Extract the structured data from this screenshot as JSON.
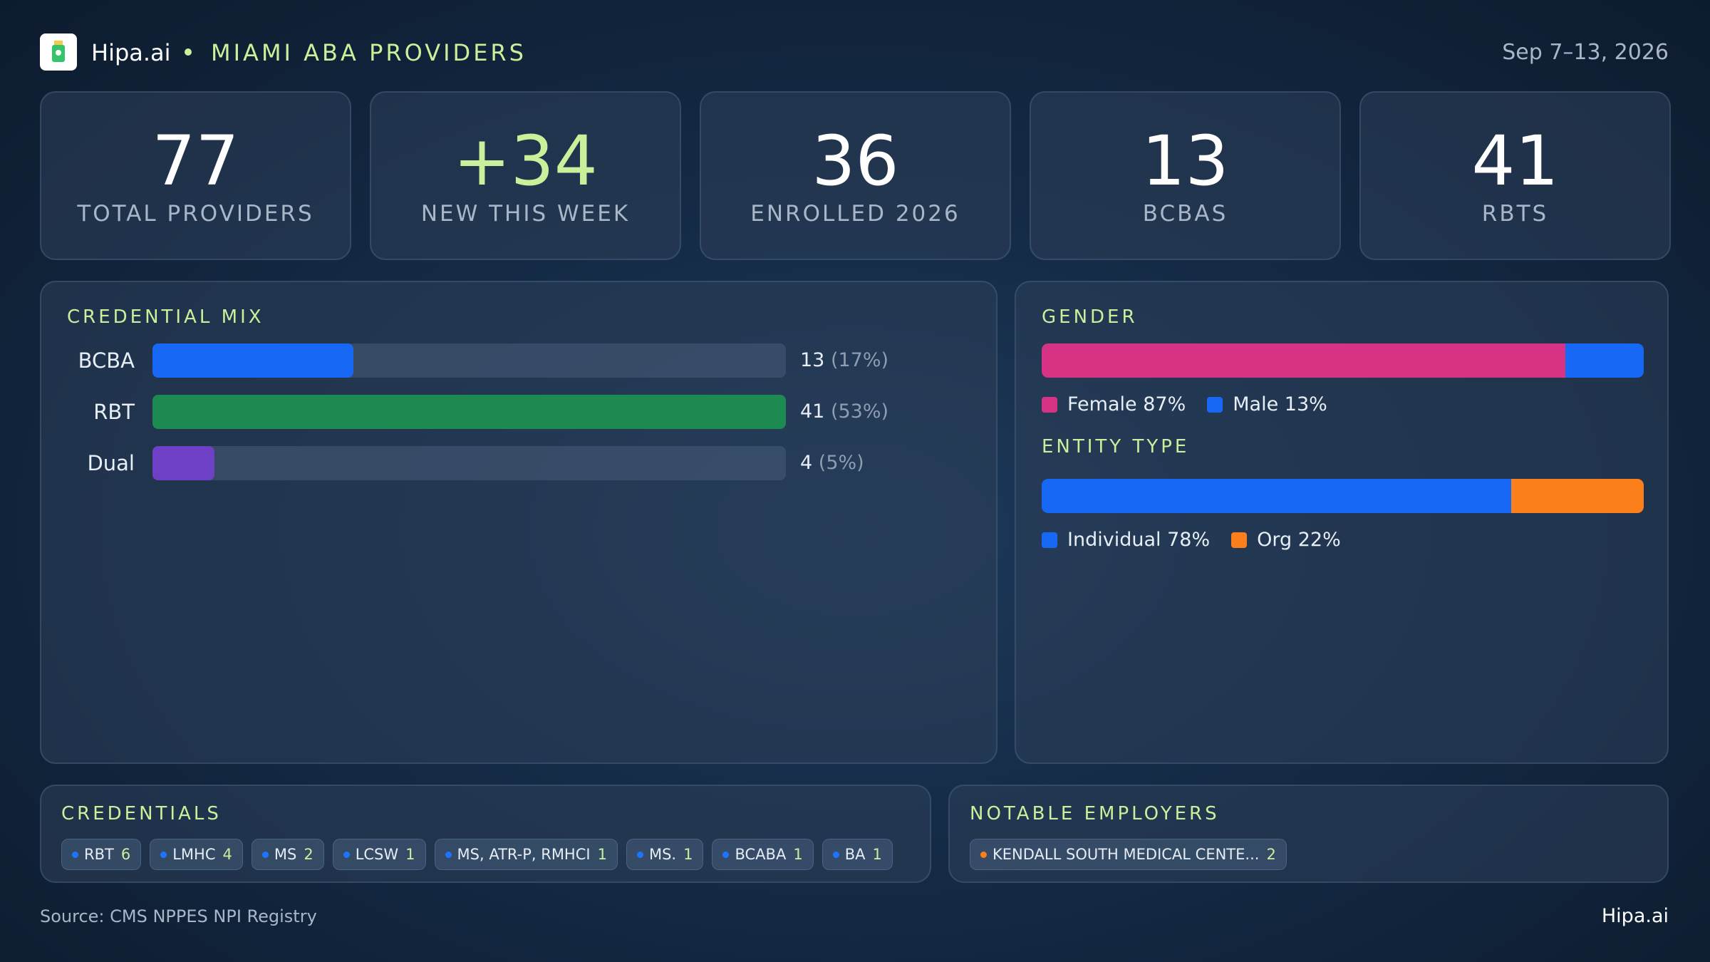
{
  "header": {
    "brand": "Hipa.ai",
    "title": "MIAMI ABA PROVIDERS",
    "date": "Sep 7–13, 2026"
  },
  "kpis": [
    {
      "value": "77",
      "label": "TOTAL PROVIDERS"
    },
    {
      "value": "+34",
      "label": "NEW THIS WEEK"
    },
    {
      "value": "36",
      "label": "ENROLLED 2026"
    },
    {
      "value": "13",
      "label": "BCBAS"
    },
    {
      "value": "41",
      "label": "RBTS"
    }
  ],
  "credential_mix": {
    "type": "bar",
    "title": "CREDENTIAL MIX",
    "categories": [
      "BCBA",
      "RBT",
      "Dual"
    ],
    "values": [
      13,
      41,
      4
    ],
    "share_labels": [
      "(17%)",
      "(53%)",
      "(5%)"
    ],
    "colors": [
      "#1769f5",
      "#1d8a52",
      "#6d40c6"
    ],
    "xlim": [
      0,
      41
    ]
  },
  "gender": {
    "type": "stacked-bar",
    "title": "GENDER",
    "xlim": [
      0,
      100
    ],
    "series": [
      {
        "name": "Female",
        "value": 87,
        "value_label": "87%",
        "color": "#d63384"
      },
      {
        "name": "Male",
        "value": 13,
        "value_label": "13%",
        "color": "#1769f5"
      }
    ]
  },
  "entity_type": {
    "type": "stacked-bar",
    "title": "ENTITY TYPE",
    "xlim": [
      0,
      100
    ],
    "series": [
      {
        "name": "Individual",
        "value": 78,
        "value_label": "78%",
        "color": "#1769f5"
      },
      {
        "name": "Org",
        "value": 22,
        "value_label": "22%",
        "color": "#fb7f1b"
      }
    ]
  },
  "credentials": {
    "title": "CREDENTIALS",
    "items": [
      {
        "name": "RBT",
        "count": 6
      },
      {
        "name": "LMHC",
        "count": 4
      },
      {
        "name": "MS",
        "count": 2
      },
      {
        "name": "LCSW",
        "count": 1
      },
      {
        "name": "MS, ATR-P, RMHCI",
        "count": 1
      },
      {
        "name": "MS.",
        "count": 1
      },
      {
        "name": "BCABA",
        "count": 1
      },
      {
        "name": "BA",
        "count": 1
      }
    ]
  },
  "employers": {
    "title": "NOTABLE EMPLOYERS",
    "items": [
      {
        "name": "KENDALL SOUTH MEDICAL CENTE...",
        "count": 2
      }
    ]
  },
  "footer": {
    "source": "Source: CMS NPPES NPI Registry",
    "brand": "Hipa.ai"
  }
}
